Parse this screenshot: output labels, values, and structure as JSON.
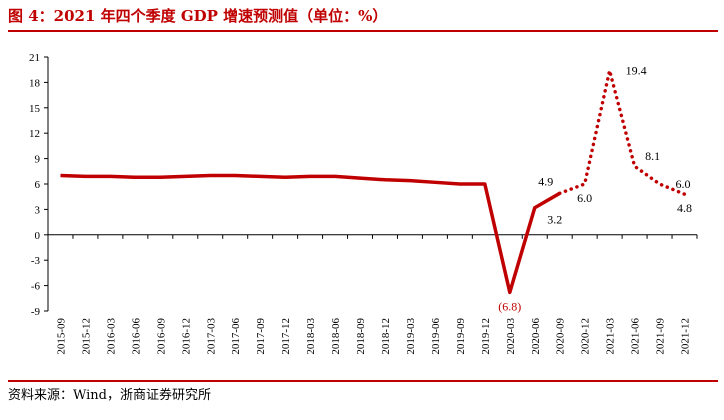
{
  "title": "图 4：2021 年四个季度 GDP 增速预测值（单位：%）",
  "source": "资料来源：Wind，浙商证券研究所",
  "colors": {
    "accent": "#c00000",
    "line": "#c00000",
    "text": "#000000",
    "negative_label": "#c00000"
  },
  "chart_data": {
    "type": "line",
    "title": "",
    "xlabel": "",
    "ylabel": "",
    "ylim": [
      -9,
      21
    ],
    "yticks": [
      -9,
      -6,
      -3,
      0,
      3,
      6,
      9,
      12,
      15,
      18,
      21
    ],
    "grid": false,
    "legend": "none",
    "categories": [
      "2015-09",
      "2015-12",
      "2016-03",
      "2016-06",
      "2016-09",
      "2016-12",
      "2017-03",
      "2017-06",
      "2017-09",
      "2017-12",
      "2018-03",
      "2018-06",
      "2018-09",
      "2018-12",
      "2019-03",
      "2019-06",
      "2019-09",
      "2019-12",
      "2020-03",
      "2020-06",
      "2020-09",
      "2020-12",
      "2021-03",
      "2021-06",
      "2021-09",
      "2021-12"
    ],
    "series": [
      {
        "style": "solid",
        "values": [
          7.0,
          6.9,
          6.9,
          6.8,
          6.8,
          6.9,
          7.0,
          7.0,
          6.9,
          6.8,
          6.9,
          6.9,
          6.7,
          6.5,
          6.4,
          6.2,
          6.0,
          6.0,
          -6.8,
          3.2,
          4.9,
          null,
          null,
          null,
          null,
          null
        ]
      },
      {
        "style": "dotted",
        "values": [
          null,
          null,
          null,
          null,
          null,
          null,
          null,
          null,
          null,
          null,
          null,
          null,
          null,
          null,
          null,
          null,
          null,
          null,
          null,
          null,
          4.9,
          6.0,
          19.4,
          8.1,
          6.0,
          4.8
        ]
      }
    ],
    "data_labels": [
      {
        "index": 18,
        "text": "(6.8)",
        "value": -6.8,
        "color": "#c00000",
        "pos": "below"
      },
      {
        "index": 19,
        "text": "3.2",
        "value": 3.2,
        "pos": "below-right"
      },
      {
        "index": 20,
        "text": "4.9",
        "value": 4.9,
        "pos": "above-left"
      },
      {
        "index": 21,
        "text": "6.0",
        "value": 6.0,
        "pos": "below"
      },
      {
        "index": 22,
        "text": "19.4",
        "value": 19.4,
        "pos": "right"
      },
      {
        "index": 23,
        "text": "8.1",
        "value": 8.1,
        "pos": "above-right"
      },
      {
        "index": 24,
        "text": "6.0",
        "value": 6.0,
        "pos": "right"
      },
      {
        "index": 25,
        "text": "4.8",
        "value": 4.8,
        "pos": "below"
      }
    ]
  }
}
